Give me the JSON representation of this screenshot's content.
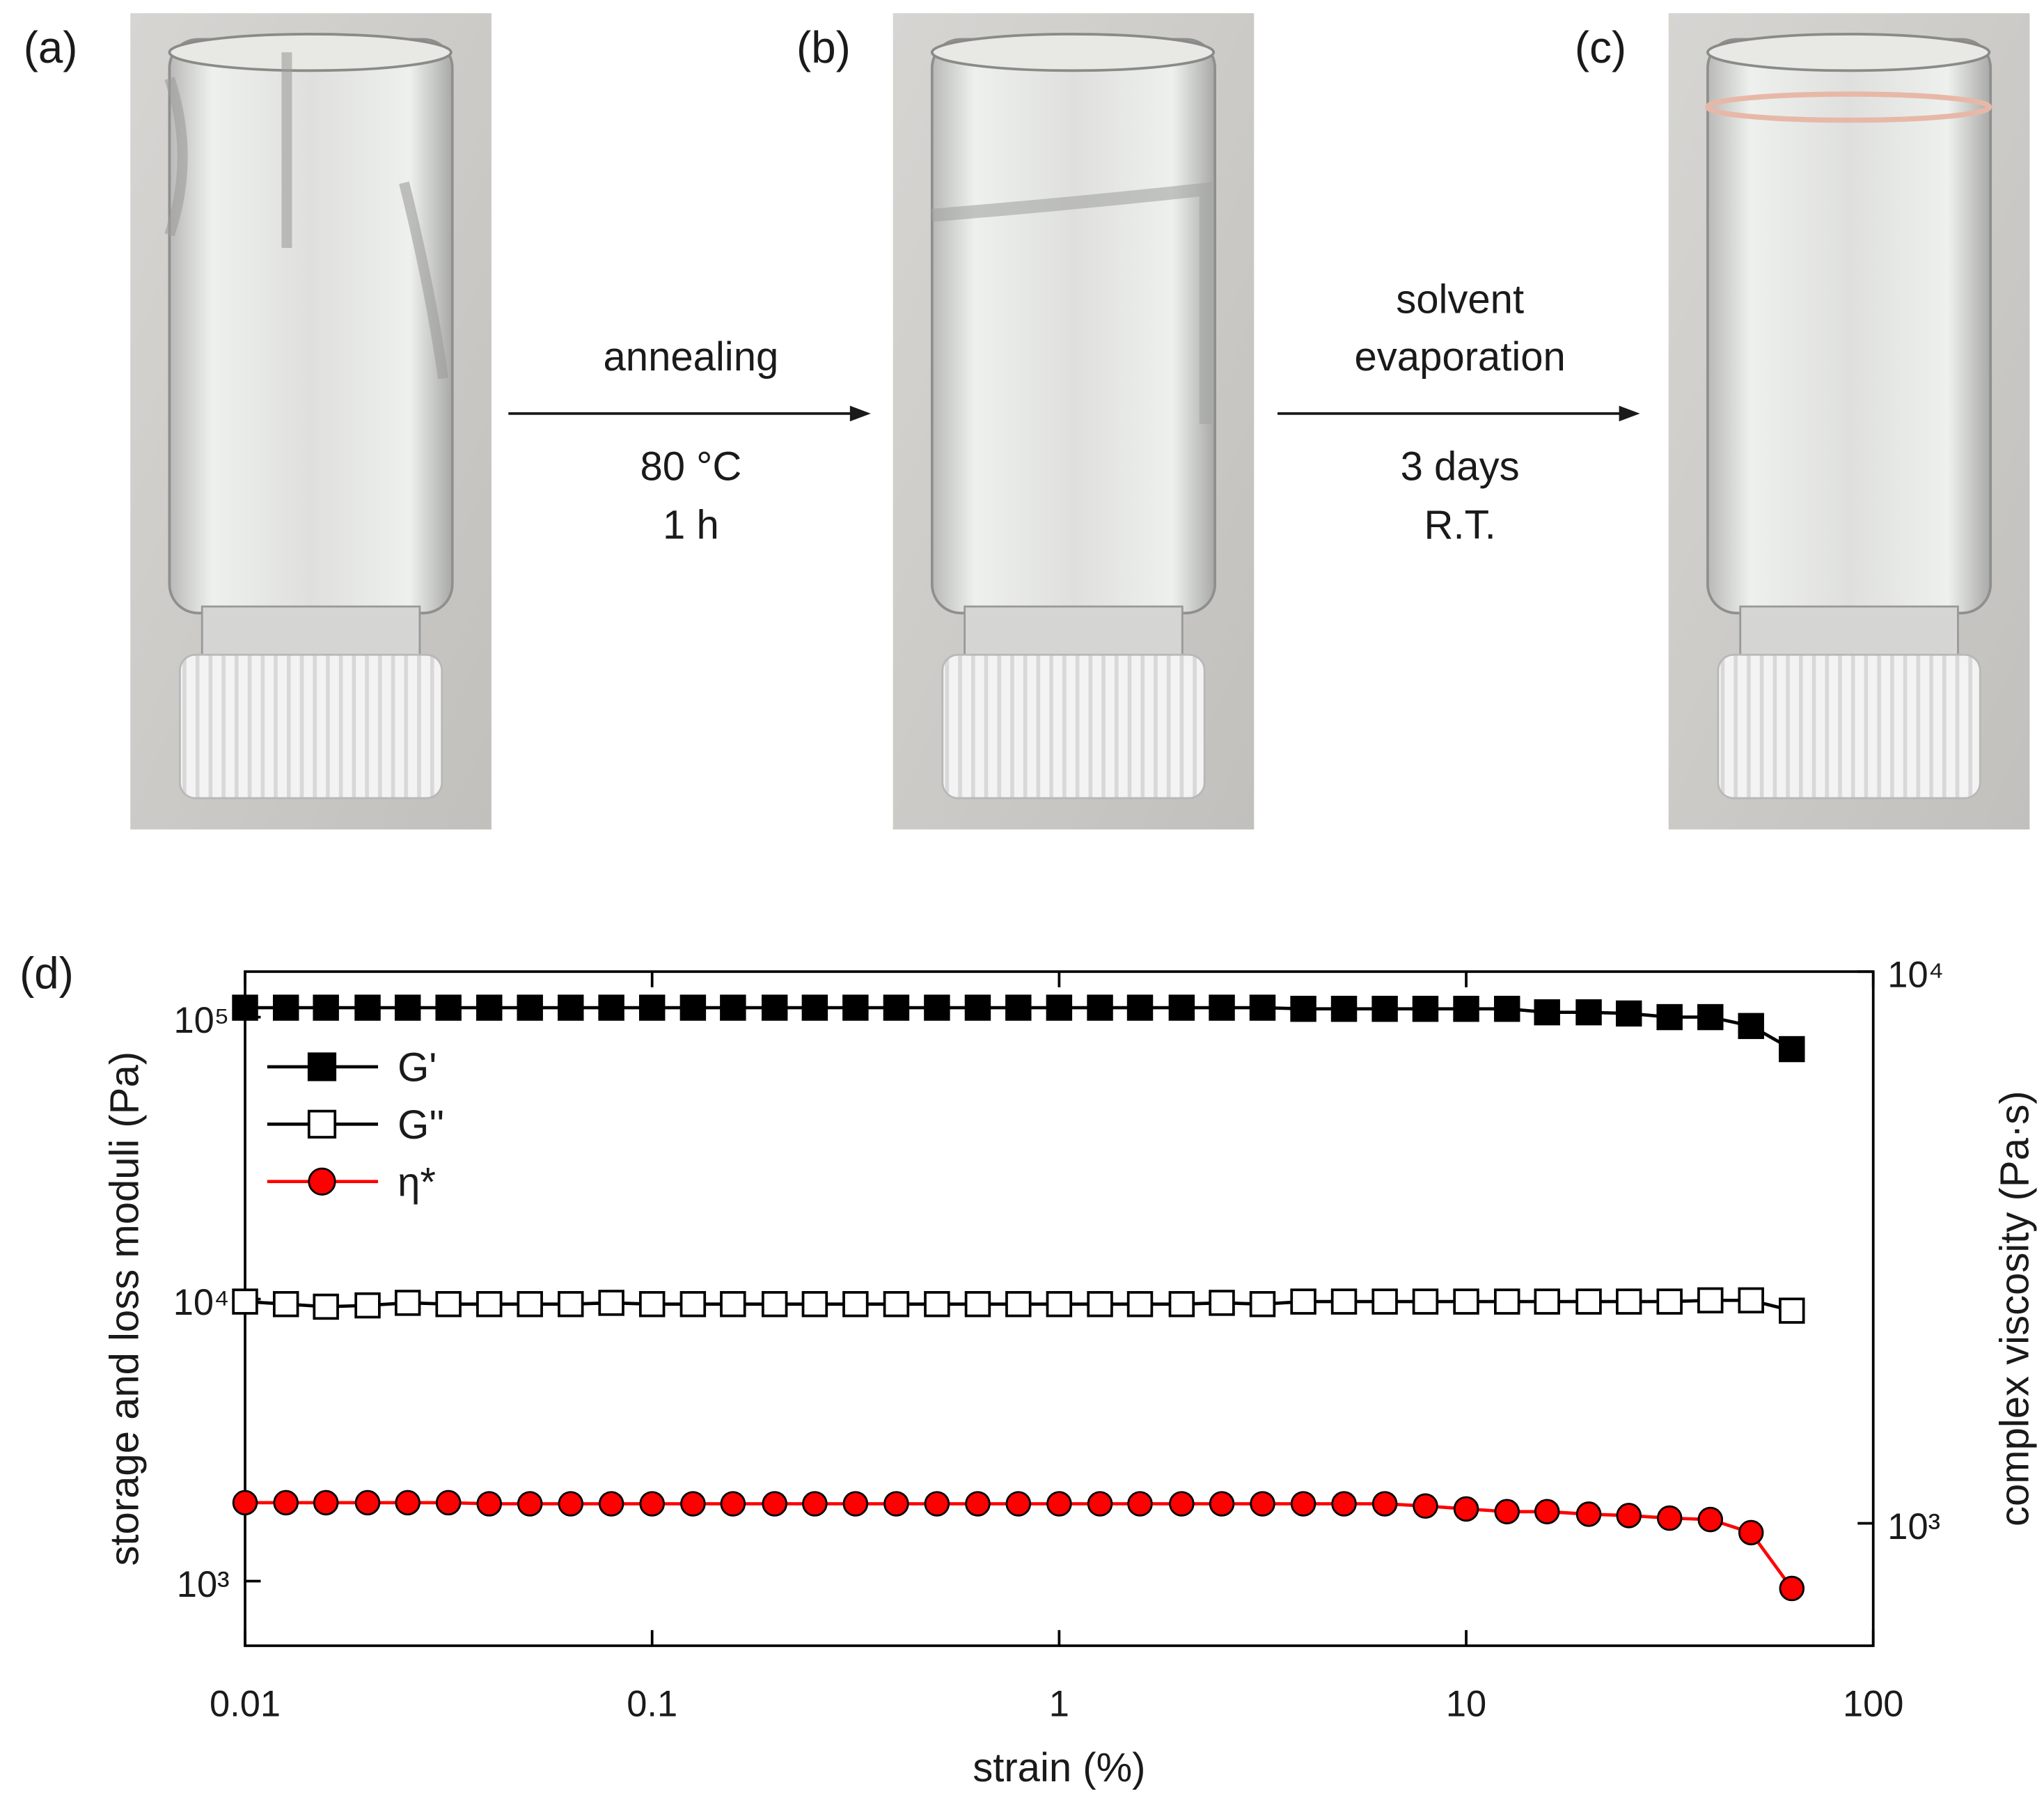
{
  "figure": {
    "panels": [
      "(a)",
      "(b)",
      "(c)"
    ],
    "steps": [
      {
        "above": [
          "annealing"
        ],
        "below": [
          "80 °C",
          "1 h"
        ]
      },
      {
        "above": [
          "solvent",
          "evaporation"
        ],
        "below": [
          "3 days",
          "R.T."
        ]
      }
    ]
  },
  "chart_data": {
    "type": "line",
    "panel": "(d)",
    "x_label": "strain (%)",
    "y_label": "storage and loss moduli (Pa)",
    "y2_label": "complex viscosity (Pa·s)",
    "xscale": "log",
    "yscale": "log",
    "y2scale": "log",
    "xlim": [
      0.01,
      100
    ],
    "ylim": [
      590,
      145000
    ],
    "y2lim": [
      600,
      10000
    ],
    "xticks": [
      0.01,
      0.1,
      1,
      10,
      100
    ],
    "yticks": [
      {
        "value": 1000,
        "label": "10³"
      },
      {
        "value": 10000,
        "label": "10⁴"
      },
      {
        "value": 100000,
        "label": "10⁵"
      }
    ],
    "y2ticks": [
      {
        "value": 1000,
        "label": "10³"
      },
      {
        "value": 10000,
        "label": "10⁴"
      }
    ],
    "legend": "upper left",
    "x": [
      0.01,
      0.0126,
      0.0158,
      0.02,
      0.0251,
      0.0316,
      0.0398,
      0.0501,
      0.0631,
      0.0794,
      0.1,
      0.126,
      0.158,
      0.2,
      0.251,
      0.316,
      0.398,
      0.501,
      0.631,
      0.794,
      1,
      1.26,
      1.58,
      2,
      2.51,
      3.16,
      3.98,
      5.01,
      6.31,
      7.94,
      10,
      12.6,
      15.8,
      20,
      25.1,
      31.6,
      39.8,
      50.1,
      63.1
    ],
    "series": [
      {
        "name": "G'",
        "color": "#000000",
        "marker": "square",
        "marker_fill": "#000000",
        "marker_edge": "#000000",
        "values": [
          108000,
          108000,
          108000,
          108000,
          108000,
          108000,
          108000,
          108000,
          108000,
          108000,
          108000,
          108000,
          108000,
          108000,
          108000,
          108000,
          108000,
          108000,
          108000,
          108000,
          108000,
          108000,
          108000,
          108000,
          108000,
          108000,
          107000,
          107000,
          107000,
          107000,
          107000,
          107000,
          104000,
          104000,
          103000,
          100000,
          100000,
          93000,
          77000
        ]
      },
      {
        "name": "G''",
        "color": "#000000",
        "marker": "square",
        "marker_fill": "#ffffff",
        "marker_edge": "#000000",
        "values": [
          9800,
          9600,
          9400,
          9500,
          9700,
          9600,
          9600,
          9600,
          9600,
          9700,
          9600,
          9600,
          9600,
          9600,
          9600,
          9600,
          9600,
          9600,
          9600,
          9600,
          9600,
          9600,
          9600,
          9600,
          9700,
          9600,
          9800,
          9800,
          9800,
          9800,
          9800,
          9800,
          9800,
          9800,
          9800,
          9800,
          9900,
          9900,
          9100
        ]
      },
      {
        "name": "η*",
        "color": "#ff0000",
        "marker": "circle",
        "marker_fill": "#ff0000",
        "marker_edge": "#000000",
        "axis": "y2",
        "values": [
          1090,
          1090,
          1090,
          1090,
          1090,
          1090,
          1085,
          1085,
          1085,
          1085,
          1085,
          1085,
          1085,
          1085,
          1085,
          1085,
          1085,
          1085,
          1085,
          1085,
          1085,
          1085,
          1085,
          1085,
          1085,
          1085,
          1085,
          1085,
          1085,
          1075,
          1062,
          1050,
          1050,
          1039,
          1033,
          1022,
          1016,
          962,
          762
        ]
      }
    ]
  }
}
